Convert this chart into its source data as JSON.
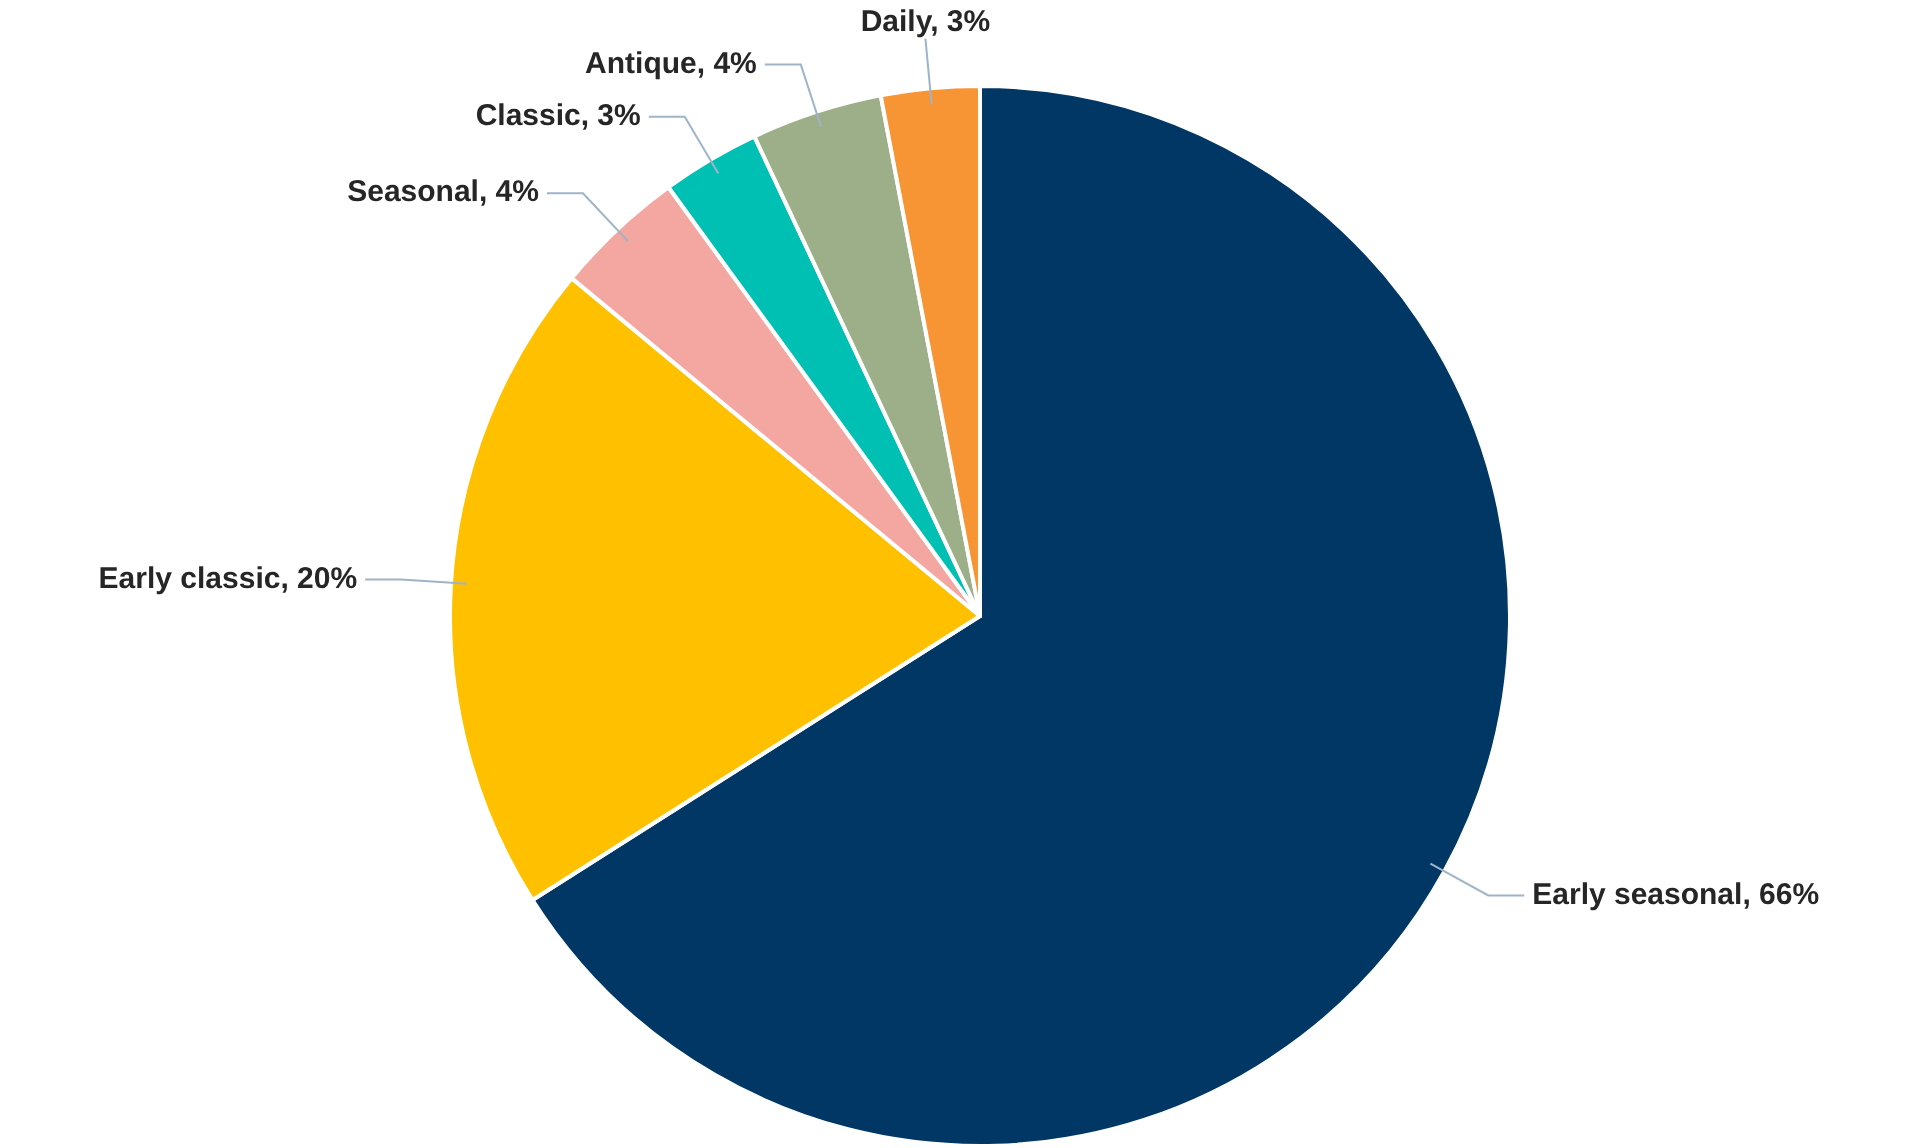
{
  "chart_data": {
    "type": "pie",
    "categories": [
      "Early seasonal",
      "Early classic",
      "Seasonal",
      "Classic",
      "Antique",
      "Daily"
    ],
    "values": [
      66,
      20,
      4,
      3,
      4,
      3
    ],
    "value_labels": [
      "66%",
      "20%",
      "4%",
      "3%",
      "4%",
      "3%"
    ],
    "colors": [
      "#003764",
      "#ffc000",
      "#f4a6a0",
      "#00bfb3",
      "#9caf88",
      "#f79433"
    ],
    "legend": false
  }
}
